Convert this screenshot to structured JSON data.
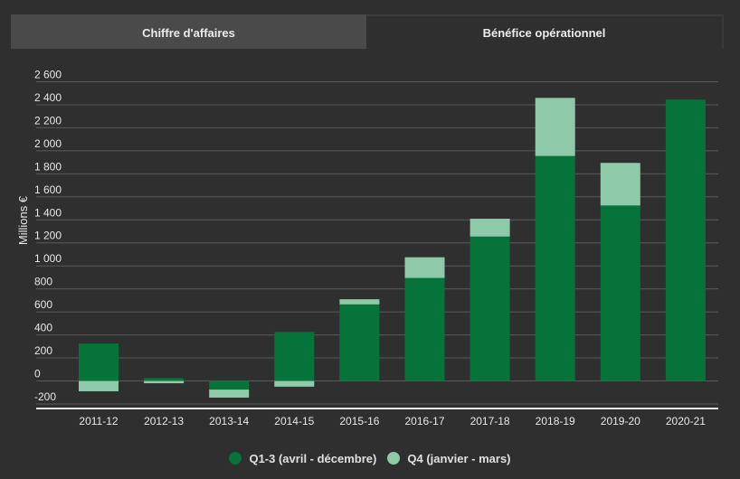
{
  "tabs": [
    {
      "label": "Chiffre d'affaires",
      "active": false
    },
    {
      "label": "Bénéfice opérationnel",
      "active": true
    }
  ],
  "colors": {
    "q13": "#05733a",
    "q4": "#8ec9a9",
    "grid": "#5a5a5a",
    "axis": "#e8e8e8",
    "text": "#e8e8e8"
  },
  "chart_data": {
    "type": "bar",
    "stacked": true,
    "ylabel": "Millions €",
    "xlabel": "",
    "ylim": [
      -200,
      2600
    ],
    "yticks": [
      -200,
      0,
      200,
      400,
      600,
      800,
      1000,
      1200,
      1400,
      1600,
      1800,
      2000,
      2200,
      2400,
      2600
    ],
    "ytick_labels": [
      "-200",
      "0",
      "200",
      "400",
      "600",
      "800",
      "1 000",
      "1 200",
      "1 400",
      "1 600",
      "1 800",
      "2 000",
      "2 200",
      "2 400",
      "2 600"
    ],
    "categories": [
      "2011-12",
      "2012-13",
      "2013-14",
      "2014-15",
      "2015-16",
      "2016-17",
      "2017-18",
      "2018-19",
      "2019-20",
      "2020-21"
    ],
    "series": [
      {
        "name": "Q1-3 (avril - décembre)",
        "values": [
          325,
          25,
          -75,
          425,
          665,
          895,
          1255,
          1955,
          1525,
          2445
        ]
      },
      {
        "name": "Q4 (janvier - mars)",
        "values": [
          -90,
          -20,
          -70,
          -50,
          45,
          180,
          155,
          505,
          370,
          0
        ]
      }
    ],
    "legend_position": "bottom",
    "grid": true
  }
}
